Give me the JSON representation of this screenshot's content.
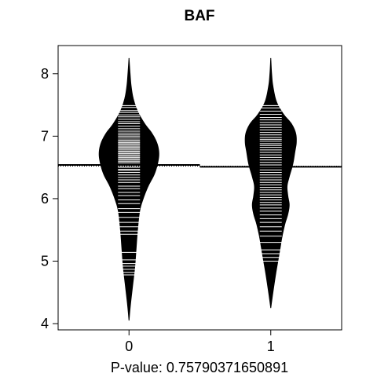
{
  "chart_data": {
    "type": "beanplot",
    "title": "BAF",
    "xlabel": "P-value: 0.75790371650891",
    "ylabel": "",
    "categories": [
      "0",
      "1"
    ],
    "ylim": [
      3.9,
      8.45
    ],
    "yticks": [
      4,
      5,
      6,
      7,
      8
    ],
    "xlim": [
      -0.5,
      1.5
    ],
    "overall_mean": 6.52,
    "grid": false,
    "legend": "none",
    "colors": {
      "bean": "#000000",
      "observation_line": "#ffffff",
      "axis": "#000000",
      "background": "#ffffff"
    },
    "series": [
      {
        "category": "0",
        "mean": 6.54,
        "density": [
          [
            4.05,
            0.0
          ],
          [
            4.3,
            0.02
          ],
          [
            4.6,
            0.05
          ],
          [
            4.9,
            0.08
          ],
          [
            5.2,
            0.1
          ],
          [
            5.5,
            0.12
          ],
          [
            5.8,
            0.15
          ],
          [
            6.0,
            0.2
          ],
          [
            6.2,
            0.27
          ],
          [
            6.4,
            0.36
          ],
          [
            6.6,
            0.41
          ],
          [
            6.75,
            0.42
          ],
          [
            6.9,
            0.39
          ],
          [
            7.05,
            0.32
          ],
          [
            7.2,
            0.22
          ],
          [
            7.4,
            0.12
          ],
          [
            7.6,
            0.06
          ],
          [
            7.8,
            0.03
          ],
          [
            8.0,
            0.015
          ],
          [
            8.25,
            0.0
          ]
        ],
        "observations": [
          7.49,
          7.46,
          7.41,
          7.38,
          7.34,
          7.31,
          7.27,
          7.23,
          7.2,
          7.16,
          7.12,
          7.08,
          7.05,
          7.02,
          7.0,
          6.97,
          6.94,
          6.92,
          6.9,
          6.88,
          6.86,
          6.84,
          6.82,
          6.8,
          6.78,
          6.76,
          6.74,
          6.72,
          6.7,
          6.68,
          6.66,
          6.64,
          6.62,
          6.6,
          6.58,
          6.55,
          6.52,
          6.5,
          6.47,
          6.45,
          6.42,
          6.38,
          6.34,
          6.3,
          6.26,
          6.2,
          6.16,
          6.1,
          6.05,
          5.98,
          5.92,
          5.84,
          5.78,
          5.7,
          5.62,
          5.55,
          5.48,
          5.43,
          5.14,
          5.02,
          4.96,
          4.92,
          4.87,
          4.82,
          4.78
        ]
      },
      {
        "category": "1",
        "mean": 6.51,
        "density": [
          [
            4.25,
            0.0
          ],
          [
            4.5,
            0.03
          ],
          [
            4.8,
            0.07
          ],
          [
            5.0,
            0.1
          ],
          [
            5.2,
            0.13
          ],
          [
            5.4,
            0.16
          ],
          [
            5.6,
            0.2
          ],
          [
            5.75,
            0.24
          ],
          [
            5.9,
            0.26
          ],
          [
            6.05,
            0.24
          ],
          [
            6.2,
            0.23
          ],
          [
            6.35,
            0.26
          ],
          [
            6.55,
            0.31
          ],
          [
            6.75,
            0.34
          ],
          [
            6.9,
            0.36
          ],
          [
            7.05,
            0.35
          ],
          [
            7.2,
            0.29
          ],
          [
            7.35,
            0.18
          ],
          [
            7.55,
            0.08
          ],
          [
            7.8,
            0.03
          ],
          [
            8.0,
            0.012
          ],
          [
            8.25,
            0.0
          ]
        ],
        "observations": [
          7.49,
          7.45,
          7.4,
          7.35,
          7.3,
          7.26,
          7.22,
          7.18,
          7.14,
          7.1,
          7.06,
          7.02,
          6.98,
          6.95,
          6.92,
          6.88,
          6.85,
          6.82,
          6.78,
          6.74,
          6.7,
          6.66,
          6.62,
          6.58,
          6.54,
          6.5,
          6.46,
          6.42,
          6.38,
          6.34,
          6.3,
          6.26,
          6.22,
          6.18,
          6.14,
          6.1,
          6.06,
          6.02,
          5.98,
          5.94,
          5.9,
          5.85,
          5.8,
          5.74,
          5.68,
          5.62,
          5.55,
          5.48,
          5.4,
          5.3,
          5.18,
          5.12,
          5.06,
          5.0
        ]
      }
    ]
  }
}
